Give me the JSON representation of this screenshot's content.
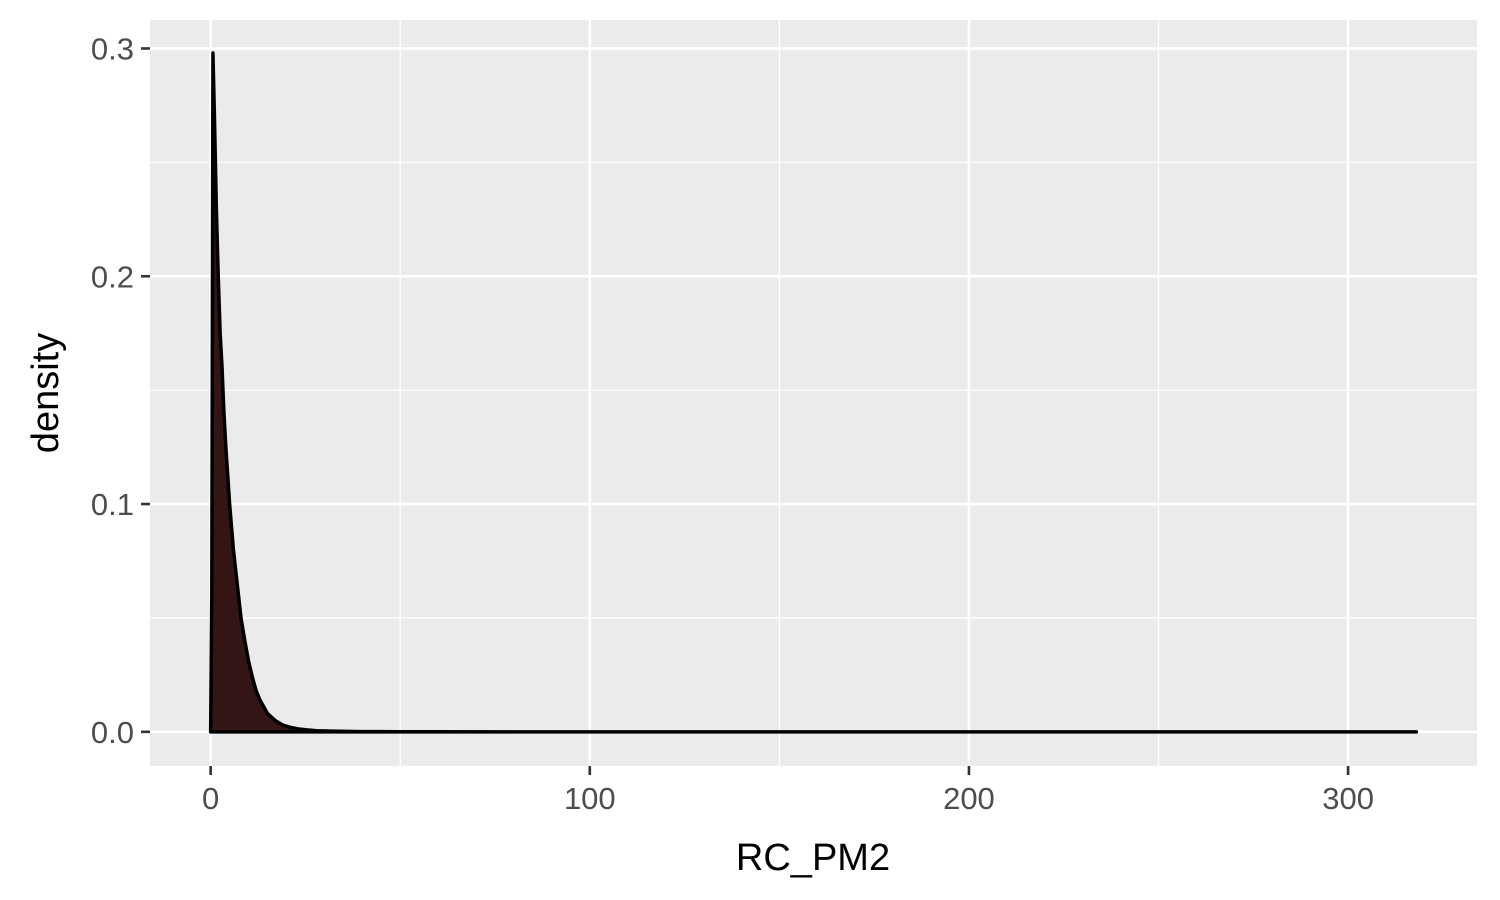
{
  "chart_data": {
    "type": "area",
    "title": "",
    "xlabel": "RC_PM2",
    "ylabel": "density",
    "xlim": [
      -16,
      334
    ],
    "ylim": [
      -0.015,
      0.3125
    ],
    "x_ticks": [
      {
        "value": 0,
        "label": "0"
      },
      {
        "value": 100,
        "label": "100"
      },
      {
        "value": 200,
        "label": "200"
      },
      {
        "value": 300,
        "label": "300"
      }
    ],
    "x_minor_ticks": [
      50,
      150,
      250
    ],
    "y_ticks": [
      {
        "value": 0.0,
        "label": "0.0"
      },
      {
        "value": 0.1,
        "label": "0.1"
      },
      {
        "value": 0.2,
        "label": "0.2"
      },
      {
        "value": 0.3,
        "label": "0.3"
      }
    ],
    "y_minor_ticks": [
      0.05,
      0.15,
      0.25
    ],
    "grid": true,
    "legend": "none",
    "colors": {
      "fill": "#331515",
      "outline": "#000000",
      "panel": "#ebebeb"
    },
    "series": [
      {
        "x": [
          0,
          0.3,
          0.6,
          1.0,
          1.5,
          2.0,
          2.5,
          3,
          3.5,
          4,
          5,
          6,
          7,
          8,
          9,
          10,
          11,
          12,
          13,
          14,
          15,
          17,
          19,
          21,
          23,
          25,
          28,
          32,
          36,
          40,
          50,
          60,
          80,
          100,
          150,
          200,
          250,
          300,
          318
        ],
        "y": [
          0.0,
          0.06,
          0.298,
          0.27,
          0.23,
          0.2,
          0.175,
          0.16,
          0.14,
          0.125,
          0.1,
          0.08,
          0.065,
          0.05,
          0.04,
          0.031,
          0.024,
          0.018,
          0.014,
          0.011,
          0.008,
          0.005,
          0.003,
          0.002,
          0.0013,
          0.0009,
          0.0005,
          0.0003,
          0.0002,
          0.0001,
          5e-05,
          2e-05,
          0.0,
          0.0,
          0.0,
          0.0,
          0.0,
          0.0,
          0.0
        ]
      }
    ]
  }
}
